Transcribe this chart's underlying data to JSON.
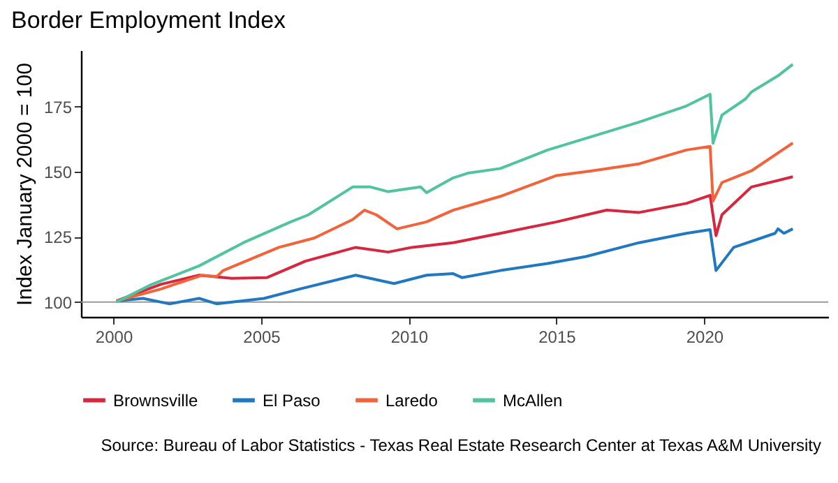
{
  "chart_data": {
    "type": "line",
    "title": "Border Employment Index",
    "ylabel": "Index January 2000 = 100",
    "xlim": [
      1998.9,
      2024.2
    ],
    "xticks": [
      2000,
      2005,
      2010,
      2015,
      2020
    ],
    "ylim": [
      94.3,
      196.7
    ],
    "yticks": [
      100,
      125,
      150,
      175
    ],
    "grid": false,
    "legend": "bottom",
    "ref_lines": [
      {
        "axis": "y",
        "value": 100,
        "color": "#999999"
      }
    ],
    "annotations": [
      "Source: Bureau of Labor Statistics - Texas Real Estate Research Center at Texas A&M University"
    ],
    "series": [
      {
        "name": "Brownsville",
        "color": "#d7263d",
        "x": [
          2000.1,
          2001.6,
          2002.9,
          2004.0,
          2005.2,
          2006.5,
          2008.2,
          2009.3,
          2010.1,
          2011.5,
          2013.1,
          2015.0,
          2016.7,
          2017.8,
          2019.4,
          2020.2,
          2020.4,
          2020.6,
          2021.6,
          2023.0
        ],
        "values": [
          100.4,
          106.8,
          110.3,
          109.1,
          109.4,
          115.7,
          121,
          119.2,
          121,
          122.8,
          126.4,
          130.8,
          135.3,
          134.4,
          137.9,
          141,
          125.5,
          133.5,
          144.2,
          148.1
        ]
      },
      {
        "name": "El Paso",
        "color": "#1f78c1",
        "x": [
          2000.1,
          2001.0,
          2001.9,
          2002.9,
          2003.5,
          2005.1,
          2006.3,
          2008.2,
          2009.5,
          2010.6,
          2011.5,
          2011.8,
          2013.1,
          2014.7,
          2016.0,
          2017.8,
          2019.4,
          2020.2,
          2020.4,
          2021.0,
          2022.4,
          2022.5,
          2022.7,
          2023.0
        ],
        "values": [
          100.4,
          101.4,
          99.3,
          101.4,
          99.3,
          101.4,
          105,
          110.3,
          107.1,
          110.3,
          110.9,
          109.4,
          112.1,
          114.8,
          117.5,
          122.8,
          126.4,
          127.8,
          112.1,
          121,
          126.4,
          128.1,
          126.4,
          128.1
        ]
      },
      {
        "name": "Laredo",
        "color": "#f4623a",
        "x": [
          2000.1,
          2001.6,
          2003.0,
          2003.5,
          2003.7,
          2005.6,
          2006.8,
          2008.1,
          2008.5,
          2008.9,
          2009.6,
          2010.6,
          2011.5,
          2013.1,
          2015.0,
          2016.2,
          2017.8,
          2019.4,
          2020.2,
          2020.3,
          2020.6,
          2021.6,
          2023.0
        ],
        "values": [
          100.4,
          105,
          110.3,
          109.8,
          112,
          121,
          124.6,
          131.7,
          135.3,
          133.5,
          128.1,
          130.8,
          135.3,
          140.6,
          148.6,
          150.4,
          153.1,
          158.4,
          159.8,
          138.8,
          145.9,
          150.4,
          161.1
        ]
      },
      {
        "name": "McAllen",
        "color": "#4fc49e",
        "x": [
          2000.1,
          2001.3,
          2002.9,
          2004.4,
          2006.0,
          2006.6,
          2008.1,
          2008.7,
          2009.3,
          2010.4,
          2010.6,
          2011.5,
          2012.0,
          2013.1,
          2014.7,
          2016.0,
          2017.8,
          2019.4,
          2020.2,
          2020.3,
          2020.6,
          2021.4,
          2021.6,
          2022.5,
          2023.0
        ],
        "values": [
          100,
          106.8,
          113.9,
          122.8,
          130.8,
          133.5,
          144.2,
          144.2,
          142.4,
          144.2,
          142,
          147.7,
          149.5,
          151.3,
          158.4,
          162.9,
          169.1,
          175.3,
          179.8,
          161,
          171.8,
          178,
          180.7,
          186.9,
          191.3
        ]
      }
    ]
  }
}
